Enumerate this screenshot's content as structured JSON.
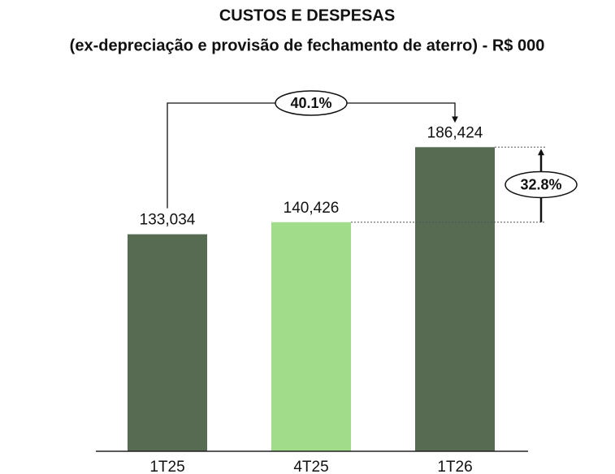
{
  "chart_data": {
    "type": "bar",
    "title": "CUSTOS E DESPESAS",
    "subtitle": "(ex-depreciação e provisão de fechamento de aterro) - R$ 000",
    "categories": [
      "1T25",
      "4T25",
      "1T26"
    ],
    "values": [
      133034,
      140426,
      186424
    ],
    "value_labels": [
      "133,034",
      "140,426",
      "186,424"
    ],
    "colors": [
      "#566b52",
      "#a0dc8a",
      "#566b52"
    ],
    "ylim": [
      0,
      200000
    ],
    "annotations": [
      "40.1%",
      "32.8%"
    ]
  }
}
